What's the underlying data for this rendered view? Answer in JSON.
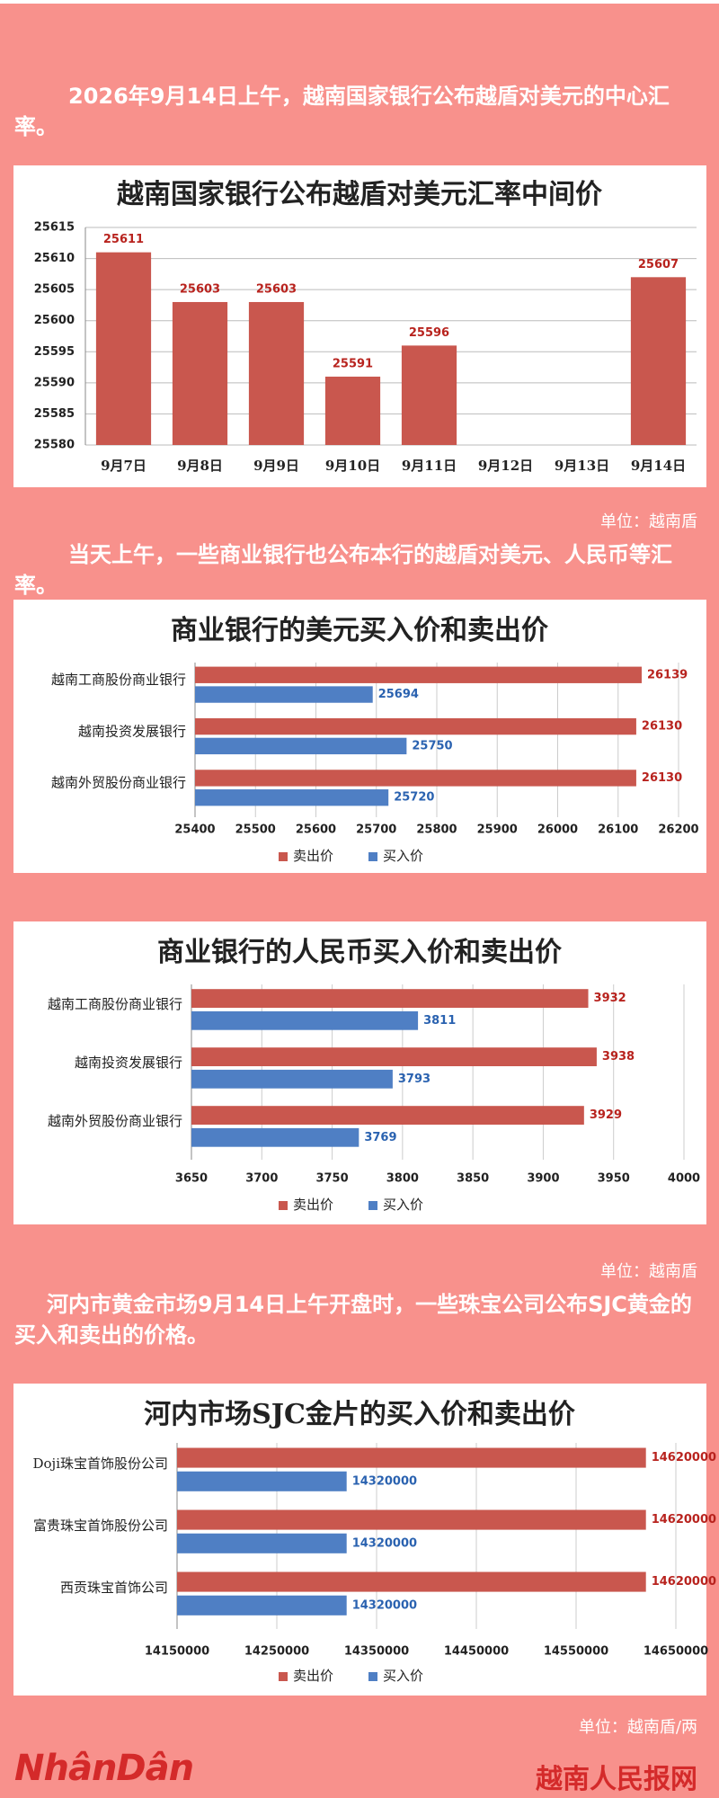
{
  "intro": [
    "2026年9月14日上午，越南国家银行公布越盾对美元的中心汇率。",
    "当天上午，一些商业银行也公布本行的越盾对美元、人民币等汇率。",
    "河内市黄金市场9月14日上午开盘时，一些珠宝公司公布SJC黄金的买入和卖出的价格。"
  ],
  "units": [
    "单位：越南盾",
    "单位：越南盾",
    "单位：越南盾/两"
  ],
  "footer": {
    "logo": "NhânDân",
    "site": "越南人民报网"
  },
  "chart_data": [
    {
      "type": "bar",
      "title": "越南国家银行公布越盾对美元汇率中间价",
      "categories": [
        "9月7日",
        "9月8日",
        "9月9日",
        "9月10日",
        "9月11日",
        "9月12日",
        "9月13日",
        "9月14日"
      ],
      "values": [
        25611,
        25603,
        25603,
        25591,
        25596,
        null,
        null,
        25607
      ],
      "color": "#c9574e",
      "ylim": [
        25580,
        25615
      ],
      "yticks": [
        25580,
        25585,
        25590,
        25595,
        25600,
        25605,
        25610,
        25615
      ],
      "grid": true
    },
    {
      "type": "hbar",
      "title": "商业银行的美元买入价和卖出价",
      "categories": [
        "越南工商股份商业银行",
        "越南投资发展银行",
        "越南外贸股份商业银行"
      ],
      "series": [
        {
          "name": "卖出价",
          "color": "#c9574e",
          "values": [
            26139,
            26130,
            26130
          ]
        },
        {
          "name": "买入价",
          "color": "#4f7fc4",
          "values": [
            25694,
            25750,
            25720
          ]
        }
      ],
      "xlim": [
        25400,
        26200
      ],
      "xticks": [
        25400,
        25500,
        25600,
        25700,
        25800,
        25900,
        26000,
        26100,
        26200
      ],
      "grid": true,
      "legend": "bottom"
    },
    {
      "type": "hbar",
      "title": "商业银行的人民币买入价和卖出价",
      "categories": [
        "越南工商股份商业银行",
        "越南投资发展银行",
        "越南外贸股份商业银行"
      ],
      "series": [
        {
          "name": "卖出价",
          "color": "#c9574e",
          "values": [
            3932,
            3938,
            3929
          ]
        },
        {
          "name": "买入价",
          "color": "#4f7fc4",
          "values": [
            3811,
            3793,
            3769
          ]
        }
      ],
      "xlim": [
        3650,
        4000
      ],
      "xticks": [
        3650,
        3700,
        3750,
        3800,
        3850,
        3900,
        3950,
        4000
      ],
      "grid": true,
      "legend": "bottom"
    },
    {
      "type": "hbar",
      "title": "河内市场SJC金片的买入价和卖出价",
      "categories": [
        "Doji珠宝首饰股份公司",
        "富贵珠宝首饰股份公司",
        "西贡珠宝首饰公司"
      ],
      "series": [
        {
          "name": "卖出价",
          "color": "#c9574e",
          "values": [
            14620000,
            14620000,
            14620000
          ]
        },
        {
          "name": "买入价",
          "color": "#4f7fc4",
          "values": [
            14320000,
            14320000,
            14320000
          ]
        }
      ],
      "xlim": [
        14150000,
        14650000
      ],
      "xticks": [
        14150000,
        14250000,
        14350000,
        14450000,
        14550000,
        14650000
      ],
      "grid": true,
      "legend": "bottom"
    }
  ]
}
